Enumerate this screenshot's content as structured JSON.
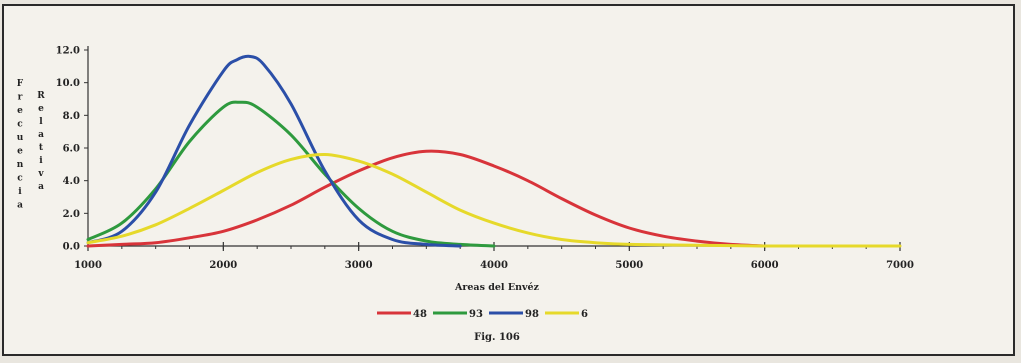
{
  "chart_data": {
    "type": "line",
    "xlabel": "Areas del Envéz",
    "ylabel_part1": "Frecuencia",
    "ylabel_part2": "Relativa",
    "caption": "Fig. 106",
    "xlim": [
      1000,
      7000
    ],
    "ylim": [
      0,
      12
    ],
    "x_ticks": [
      1000,
      2000,
      3000,
      4000,
      5000,
      6000,
      7000
    ],
    "y_ticks": [
      "0.0",
      "2.0",
      "4.0",
      "6.0",
      "8.0",
      "10.0",
      "12.0"
    ],
    "grid": false,
    "legend_position": "bottom",
    "series": [
      {
        "name": "48",
        "color": "#d8343a",
        "x": [
          1000,
          1250,
          1500,
          1750,
          2000,
          2250,
          2500,
          2750,
          3000,
          3250,
          3500,
          3750,
          4000,
          4250,
          4500,
          4750,
          5000,
          5250,
          5500,
          5750,
          6000
        ],
        "y": [
          0.0,
          0.1,
          0.2,
          0.5,
          0.9,
          1.6,
          2.5,
          3.6,
          4.6,
          5.4,
          5.8,
          5.6,
          4.9,
          4.0,
          2.9,
          1.9,
          1.1,
          0.6,
          0.3,
          0.1,
          0.0
        ]
      },
      {
        "name": "93",
        "color": "#2e9a3e",
        "x": [
          1000,
          1250,
          1500,
          1750,
          2000,
          2125,
          2250,
          2500,
          2750,
          3000,
          3250,
          3500,
          3750,
          4000
        ],
        "y": [
          0.4,
          1.4,
          3.5,
          6.4,
          8.5,
          8.8,
          8.5,
          6.8,
          4.4,
          2.3,
          0.9,
          0.3,
          0.1,
          0.0
        ]
      },
      {
        "name": "98",
        "color": "#2b4fa8",
        "x": [
          1000,
          1250,
          1500,
          1750,
          2000,
          2100,
          2200,
          2300,
          2500,
          2750,
          3000,
          3250,
          3500,
          3750
        ],
        "y": [
          0.2,
          0.9,
          3.3,
          7.4,
          10.7,
          11.4,
          11.6,
          11.1,
          8.7,
          4.6,
          1.6,
          0.4,
          0.1,
          0.0
        ]
      },
      {
        "name": "6",
        "color": "#e6d92a",
        "x": [
          1000,
          1250,
          1500,
          1750,
          2000,
          2250,
          2500,
          2750,
          3000,
          3250,
          3500,
          3750,
          4000,
          4250,
          4500,
          4750,
          5000,
          5500,
          6000,
          6500,
          7000
        ],
        "y": [
          0.2,
          0.6,
          1.3,
          2.3,
          3.4,
          4.5,
          5.3,
          5.6,
          5.2,
          4.4,
          3.3,
          2.2,
          1.4,
          0.8,
          0.4,
          0.2,
          0.1,
          0.05,
          0.0,
          0.0,
          0.0
        ]
      }
    ]
  }
}
